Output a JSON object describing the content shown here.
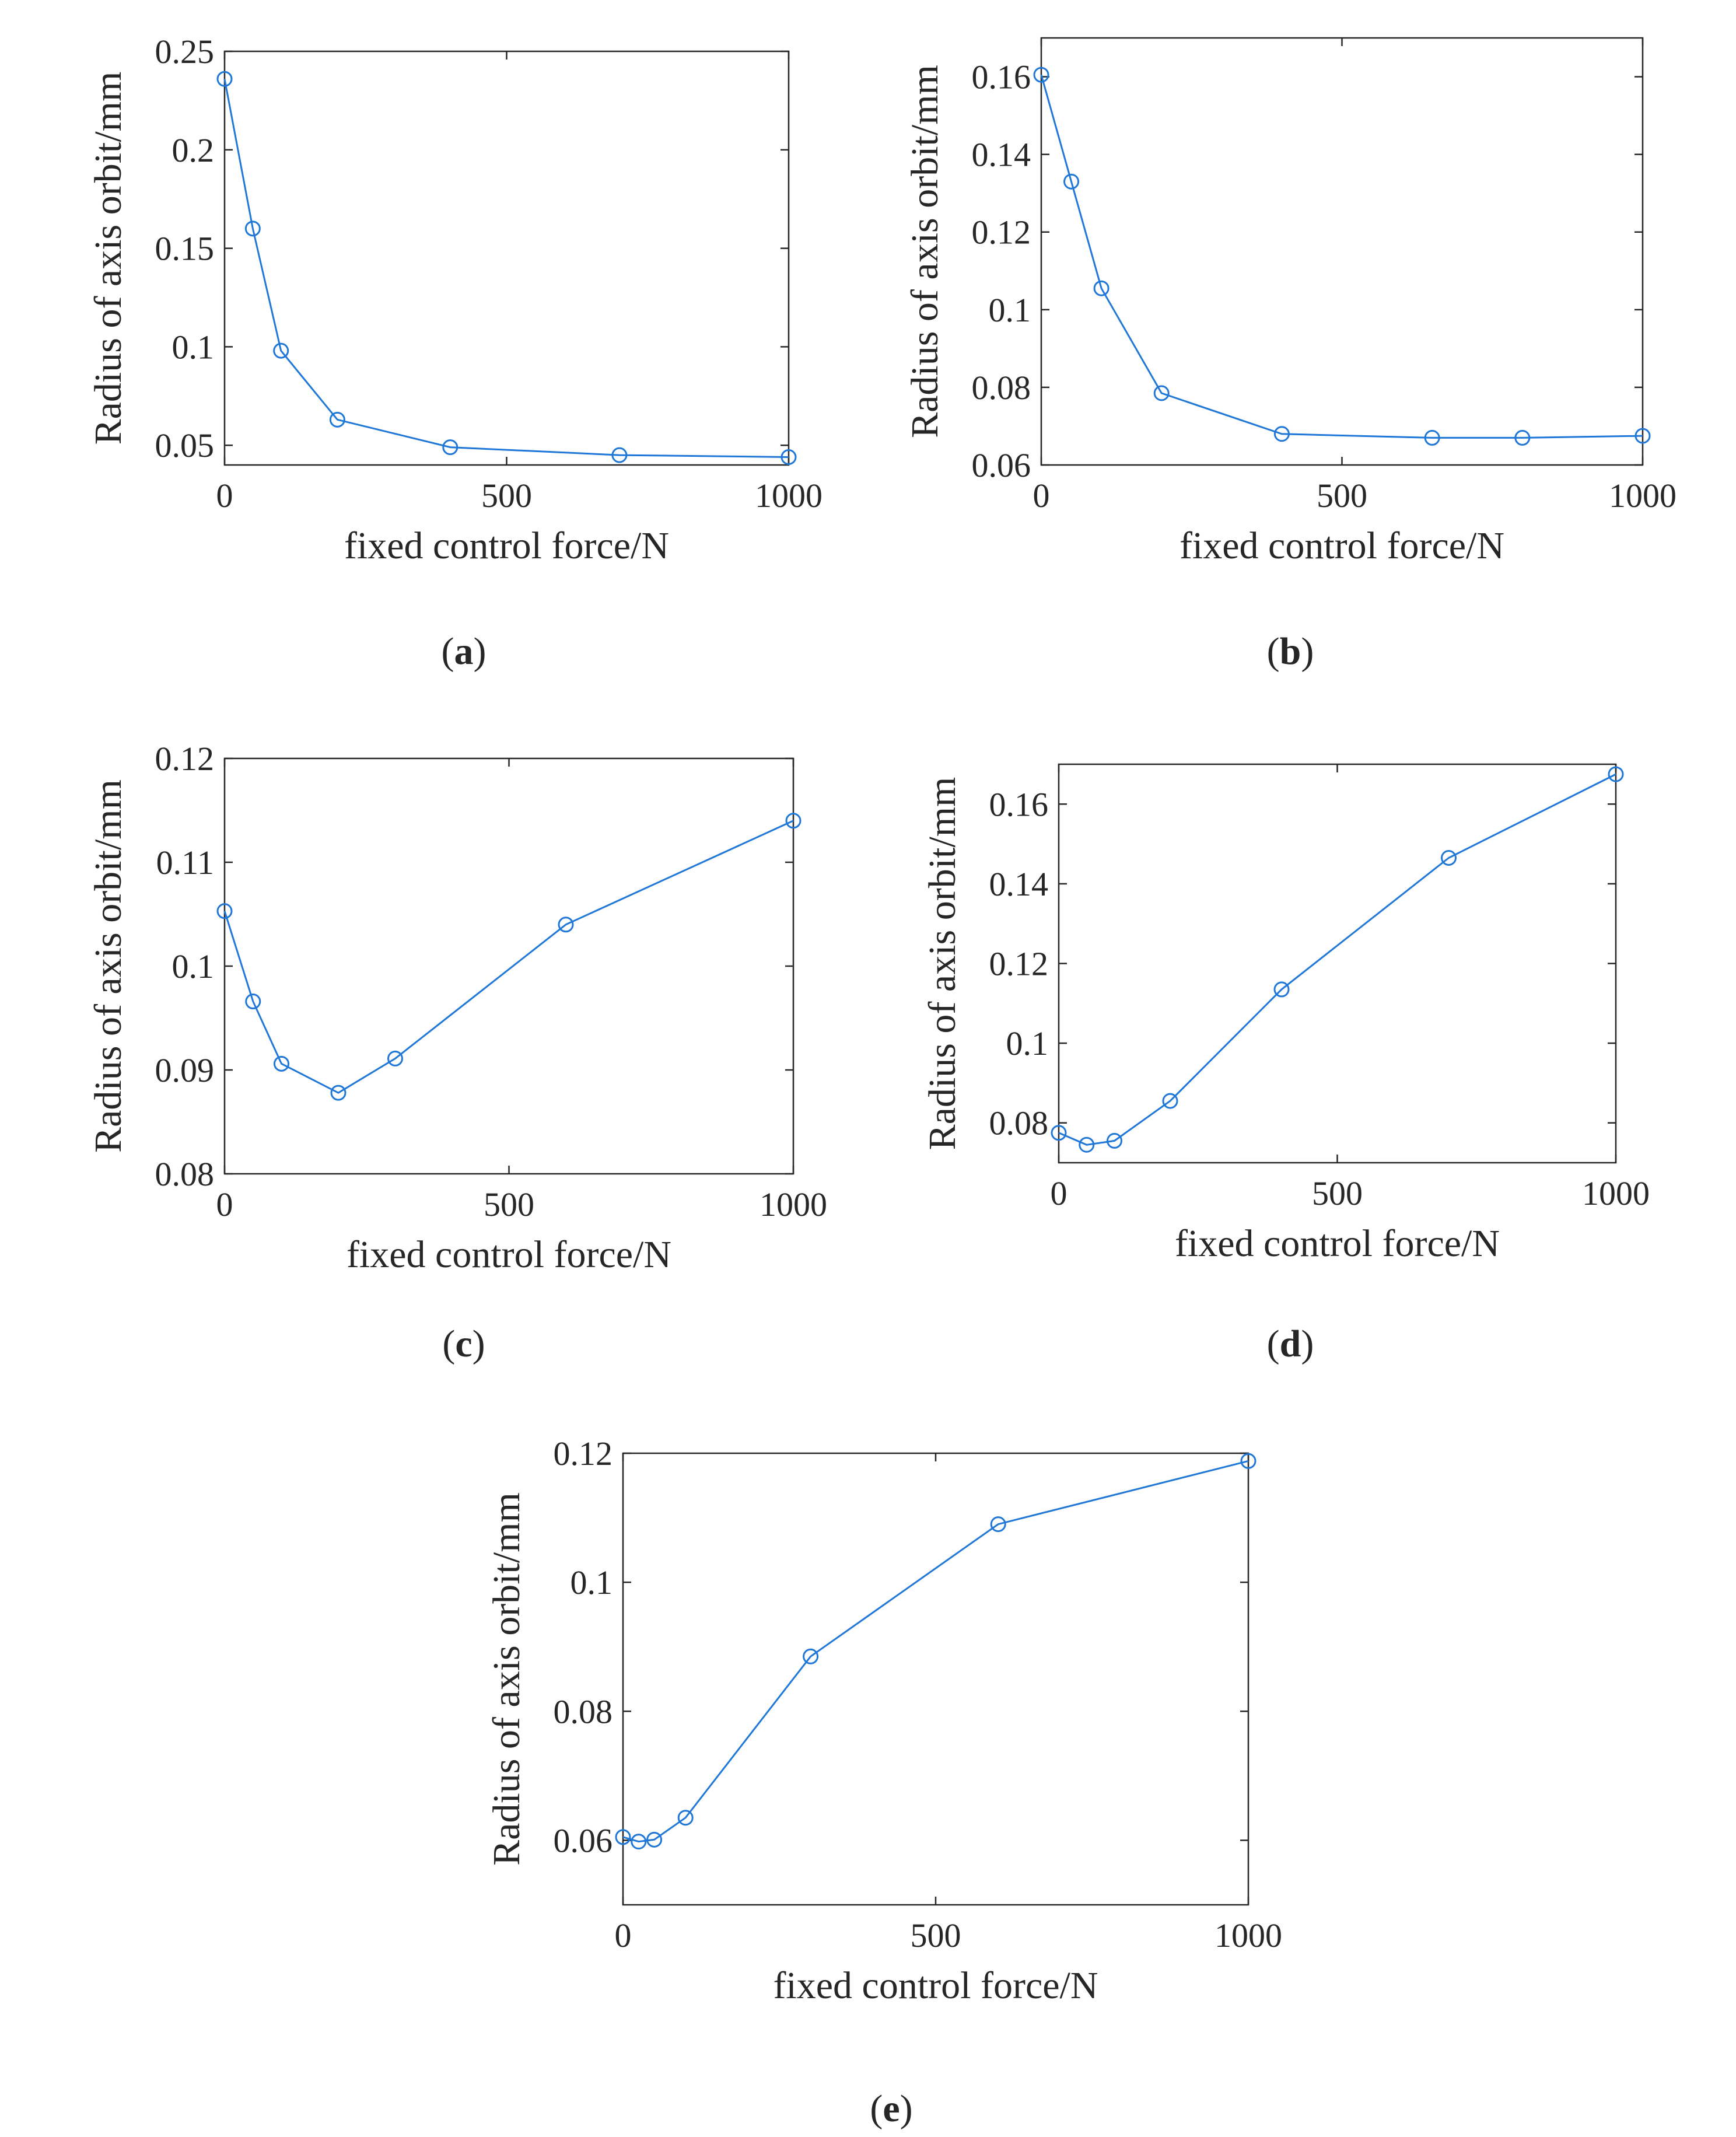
{
  "chart_data": [
    {
      "id": "a",
      "type": "line",
      "caption": "a",
      "title": "",
      "xlabel": "fixed control force/N",
      "ylabel": "Radius of axis orbit/mm",
      "xlim": [
        0,
        1000
      ],
      "ylim": [
        0.04,
        0.25
      ],
      "xticks": [
        0,
        500,
        1000
      ],
      "xtick_labels": [
        "0",
        "500",
        "1000"
      ],
      "yticks": [
        0.05,
        0.1,
        0.15,
        0.2,
        0.25
      ],
      "ytick_labels": [
        "0.05",
        "0.1",
        "0.15",
        "0.2",
        "0.25"
      ],
      "grid": false,
      "series": [
        {
          "name": "radius",
          "color": "#1f77d8",
          "marker": "circle",
          "x": [
            0,
            50,
            100,
            200,
            400,
            700,
            1000
          ],
          "y": [
            0.236,
            0.16,
            0.098,
            0.063,
            0.049,
            0.045,
            0.044
          ]
        }
      ]
    },
    {
      "id": "b",
      "type": "line",
      "caption": "b",
      "title": "",
      "xlabel": "fixed control force/N",
      "ylabel": "Radius of axis orbit/mm",
      "xlim": [
        0,
        1000
      ],
      "ylim": [
        0.06,
        0.17
      ],
      "xticks": [
        0,
        500,
        1000
      ],
      "xtick_labels": [
        "0",
        "500",
        "1000"
      ],
      "yticks": [
        0.06,
        0.08,
        0.1,
        0.12,
        0.14,
        0.16
      ],
      "ytick_labels": [
        "0.06",
        "0.08",
        "0.1",
        "0.12",
        "0.14",
        "0.16"
      ],
      "grid": false,
      "series": [
        {
          "name": "radius",
          "color": "#1f77d8",
          "marker": "circle",
          "x": [
            0,
            50,
            100,
            200,
            400,
            650,
            800,
            1000
          ],
          "y": [
            0.1605,
            0.133,
            0.1055,
            0.0785,
            0.068,
            0.067,
            0.067,
            0.0675
          ]
        }
      ]
    },
    {
      "id": "c",
      "type": "line",
      "caption": "c",
      "title": "",
      "xlabel": "fixed control force/N",
      "ylabel": "Radius of axis orbit/mm",
      "xlim": [
        0,
        1000
      ],
      "ylim": [
        0.08,
        0.12
      ],
      "xticks": [
        0,
        500,
        1000
      ],
      "xtick_labels": [
        "0",
        "500",
        "1000"
      ],
      "yticks": [
        0.08,
        0.09,
        0.1,
        0.11,
        0.12
      ],
      "ytick_labels": [
        "0.08",
        "0.09",
        "0.1",
        "0.11",
        "0.12"
      ],
      "grid": false,
      "series": [
        {
          "name": "radius",
          "color": "#1f77d8",
          "marker": "circle",
          "x": [
            0,
            50,
            100,
            200,
            300,
            600,
            1000
          ],
          "y": [
            0.1053,
            0.0966,
            0.0906,
            0.0878,
            0.0911,
            0.104,
            0.114
          ]
        }
      ]
    },
    {
      "id": "d",
      "type": "line",
      "caption": "d",
      "title": "",
      "xlabel": "fixed control force/N",
      "ylabel": "Radius of axis orbit/mm",
      "xlim": [
        0,
        1000
      ],
      "ylim": [
        0.07,
        0.17
      ],
      "xticks": [
        0,
        500,
        1000
      ],
      "xtick_labels": [
        "0",
        "500",
        "1000"
      ],
      "yticks": [
        0.08,
        0.1,
        0.12,
        0.14,
        0.16
      ],
      "ytick_labels": [
        "0.08",
        "0.1",
        "0.12",
        "0.14",
        "0.16"
      ],
      "grid": false,
      "series": [
        {
          "name": "radius",
          "color": "#1f77d8",
          "marker": "circle",
          "x": [
            0,
            50,
            100,
            200,
            400,
            700,
            1000
          ],
          "y": [
            0.0775,
            0.0745,
            0.0755,
            0.0855,
            0.1135,
            0.1465,
            0.1675
          ]
        }
      ]
    },
    {
      "id": "e",
      "type": "line",
      "caption": "e",
      "title": "",
      "xlabel": "fixed control force/N",
      "ylabel": "Radius of axis orbit/mm",
      "xlim": [
        0,
        1000
      ],
      "ylim": [
        0.05,
        0.12
      ],
      "xticks": [
        0,
        500,
        1000
      ],
      "xtick_labels": [
        "0",
        "500",
        "1000"
      ],
      "yticks": [
        0.06,
        0.08,
        0.1,
        0.12
      ],
      "ytick_labels": [
        "0.06",
        "0.08",
        "0.1",
        "0.12"
      ],
      "grid": false,
      "series": [
        {
          "name": "radius",
          "color": "#1f77d8",
          "marker": "circle",
          "x": [
            0,
            25,
            50,
            100,
            300,
            600,
            1000
          ],
          "y": [
            0.0605,
            0.0598,
            0.0601,
            0.0635,
            0.0885,
            0.109,
            0.1188
          ]
        }
      ]
    }
  ]
}
